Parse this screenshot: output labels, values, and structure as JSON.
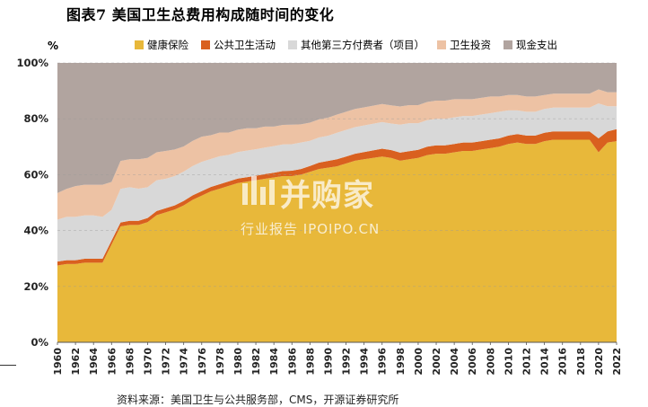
{
  "figure_title": "图表7 美国卫生总费用构成随时间的变化",
  "source_note": "资料来源：美国卫生与公共服务部，CMS，开源证券研究所",
  "watermark": {
    "main": "并购家",
    "sub": "行业报告 IPOIPO.CN"
  },
  "colors": {
    "health_insurance": "#E8B83A",
    "public_health_activity": "#D9601F",
    "other_third_party": "#D8D8D8",
    "health_investment": "#EDC2A4",
    "out_of_pocket": "#B1A49F"
  },
  "chart_data": {
    "type": "area",
    "stacked": true,
    "unit": "%",
    "title": "",
    "xlabel": "",
    "ylabel": "",
    "ylim": [
      0,
      100
    ],
    "yticks": [
      "0%",
      "20%",
      "40%",
      "60%",
      "80%",
      "100%"
    ],
    "xticks": [
      "1960",
      "1962",
      "1964",
      "1966",
      "1968",
      "1970",
      "1972",
      "1974",
      "1976",
      "1978",
      "1980",
      "1982",
      "1984",
      "1986",
      "1988",
      "1990",
      "1992",
      "1994",
      "1996",
      "1998",
      "2000",
      "2002",
      "2004",
      "2006",
      "2008",
      "2010",
      "2012",
      "2014",
      "2016",
      "2018",
      "2020",
      "2022"
    ],
    "grid": true,
    "legend_position": "top",
    "x": [
      1960,
      1961,
      1962,
      1963,
      1964,
      1965,
      1966,
      1967,
      1968,
      1969,
      1970,
      1971,
      1972,
      1973,
      1974,
      1975,
      1976,
      1977,
      1978,
      1979,
      1980,
      1981,
      1982,
      1983,
      1984,
      1985,
      1986,
      1987,
      1988,
      1989,
      1990,
      1991,
      1992,
      1993,
      1994,
      1995,
      1996,
      1997,
      1998,
      1999,
      2000,
      2001,
      2002,
      2003,
      2004,
      2005,
      2006,
      2007,
      2008,
      2009,
      2010,
      2011,
      2012,
      2013,
      2014,
      2015,
      2016,
      2017,
      2018,
      2019,
      2020,
      2021,
      2022
    ],
    "series": [
      {
        "name": "健康保险",
        "color_key": "health_insurance",
        "values": [
          27.5,
          28,
          28,
          28.5,
          28.5,
          28.5,
          35,
          41.5,
          42,
          42,
          43,
          45.5,
          46.5,
          47.5,
          49,
          51,
          52.5,
          54,
          55,
          56,
          57,
          57.5,
          58,
          58.5,
          59,
          59.5,
          59.5,
          60,
          61,
          62,
          62.5,
          63,
          64,
          65,
          65.5,
          66,
          66.5,
          66,
          65,
          65.5,
          66,
          67,
          67.5,
          67.5,
          68,
          68.5,
          68.5,
          69,
          69.5,
          70,
          71,
          71.5,
          71,
          71,
          72,
          72.5,
          72.5,
          72.5,
          72.5,
          72.5,
          68,
          71.5,
          72
        ]
      },
      {
        "name": "公共卫生活动",
        "color_key": "public_health_activity",
        "values": [
          1.4,
          1.4,
          1.4,
          1.4,
          1.4,
          1.4,
          1.4,
          1.4,
          1.5,
          1.5,
          1.5,
          1.5,
          1.5,
          1.5,
          1.6,
          1.6,
          1.6,
          1.6,
          1.6,
          1.6,
          1.6,
          1.6,
          1.6,
          1.7,
          1.7,
          1.8,
          1.9,
          2,
          2.1,
          2.3,
          2.4,
          2.5,
          2.5,
          2.5,
          2.6,
          2.7,
          2.8,
          2.8,
          2.9,
          2.9,
          2.9,
          3,
          3,
          3,
          3,
          3,
          3,
          3,
          3,
          3,
          3,
          3,
          3,
          3,
          3,
          3,
          3,
          3,
          3,
          3,
          5,
          4,
          4.3
        ]
      },
      {
        "name": "其他第三方付费者（项目）",
        "color_key": "other_third_party",
        "values": [
          15,
          15.5,
          15.5,
          15.5,
          15.5,
          15,
          11,
          12,
          12,
          11.5,
          11,
          11,
          10.5,
          10.5,
          10.5,
          10.5,
          10.5,
          10,
          10,
          9.5,
          9.5,
          9.5,
          9.5,
          9.5,
          9.5,
          9.5,
          9.5,
          9.5,
          9,
          9,
          9,
          9.5,
          9.5,
          9.5,
          9.5,
          9.5,
          9.5,
          9.5,
          10,
          10,
          9.5,
          9.5,
          9.5,
          9.5,
          9.5,
          9.5,
          9.5,
          9.5,
          9.5,
          9.5,
          9,
          8.5,
          8.5,
          8.5,
          8.5,
          8.5,
          8.5,
          8.5,
          8.5,
          8.5,
          12.5,
          9,
          8.2
        ]
      },
      {
        "name": "卫生投资",
        "color_key": "health_investment",
        "values": [
          9.5,
          10,
          11,
          11,
          11,
          11.5,
          10,
          10,
          10,
          10.5,
          10.5,
          10,
          10,
          9.5,
          9,
          9,
          9,
          8.5,
          8.5,
          8,
          8,
          8,
          7.5,
          7.5,
          7,
          7,
          7,
          6.5,
          6.5,
          6.5,
          6.5,
          6.5,
          6.5,
          6.5,
          6.5,
          6.5,
          6.5,
          6.5,
          6.5,
          6.5,
          6.5,
          6.5,
          6.5,
          6.5,
          6.5,
          6,
          6,
          6,
          6,
          5.5,
          5.5,
          5.5,
          5.5,
          5.5,
          5,
          5,
          5,
          5,
          5,
          5,
          5,
          5,
          5
        ]
      },
      {
        "name": "现金支出",
        "color_key": "out_of_pocket",
        "values": [
          46.6,
          45.1,
          44.1,
          43.6,
          43.6,
          43.6,
          42.6,
          35.1,
          34.5,
          34.5,
          34,
          32,
          31.5,
          31,
          29.9,
          27.9,
          26.4,
          25.9,
          24.9,
          24.9,
          23.9,
          23.4,
          23.4,
          22.8,
          22.8,
          22.2,
          22.1,
          22,
          21.4,
          20.2,
          19.6,
          18.5,
          17.5,
          16.5,
          15.9,
          15.3,
          14.7,
          15.2,
          15.6,
          15.1,
          15.1,
          14,
          13.5,
          13.5,
          13,
          13,
          13,
          12.5,
          12,
          12,
          11.5,
          11.5,
          12,
          12,
          11.5,
          11,
          11,
          11,
          11,
          11,
          9.5,
          10.5,
          10.5
        ]
      }
    ]
  }
}
